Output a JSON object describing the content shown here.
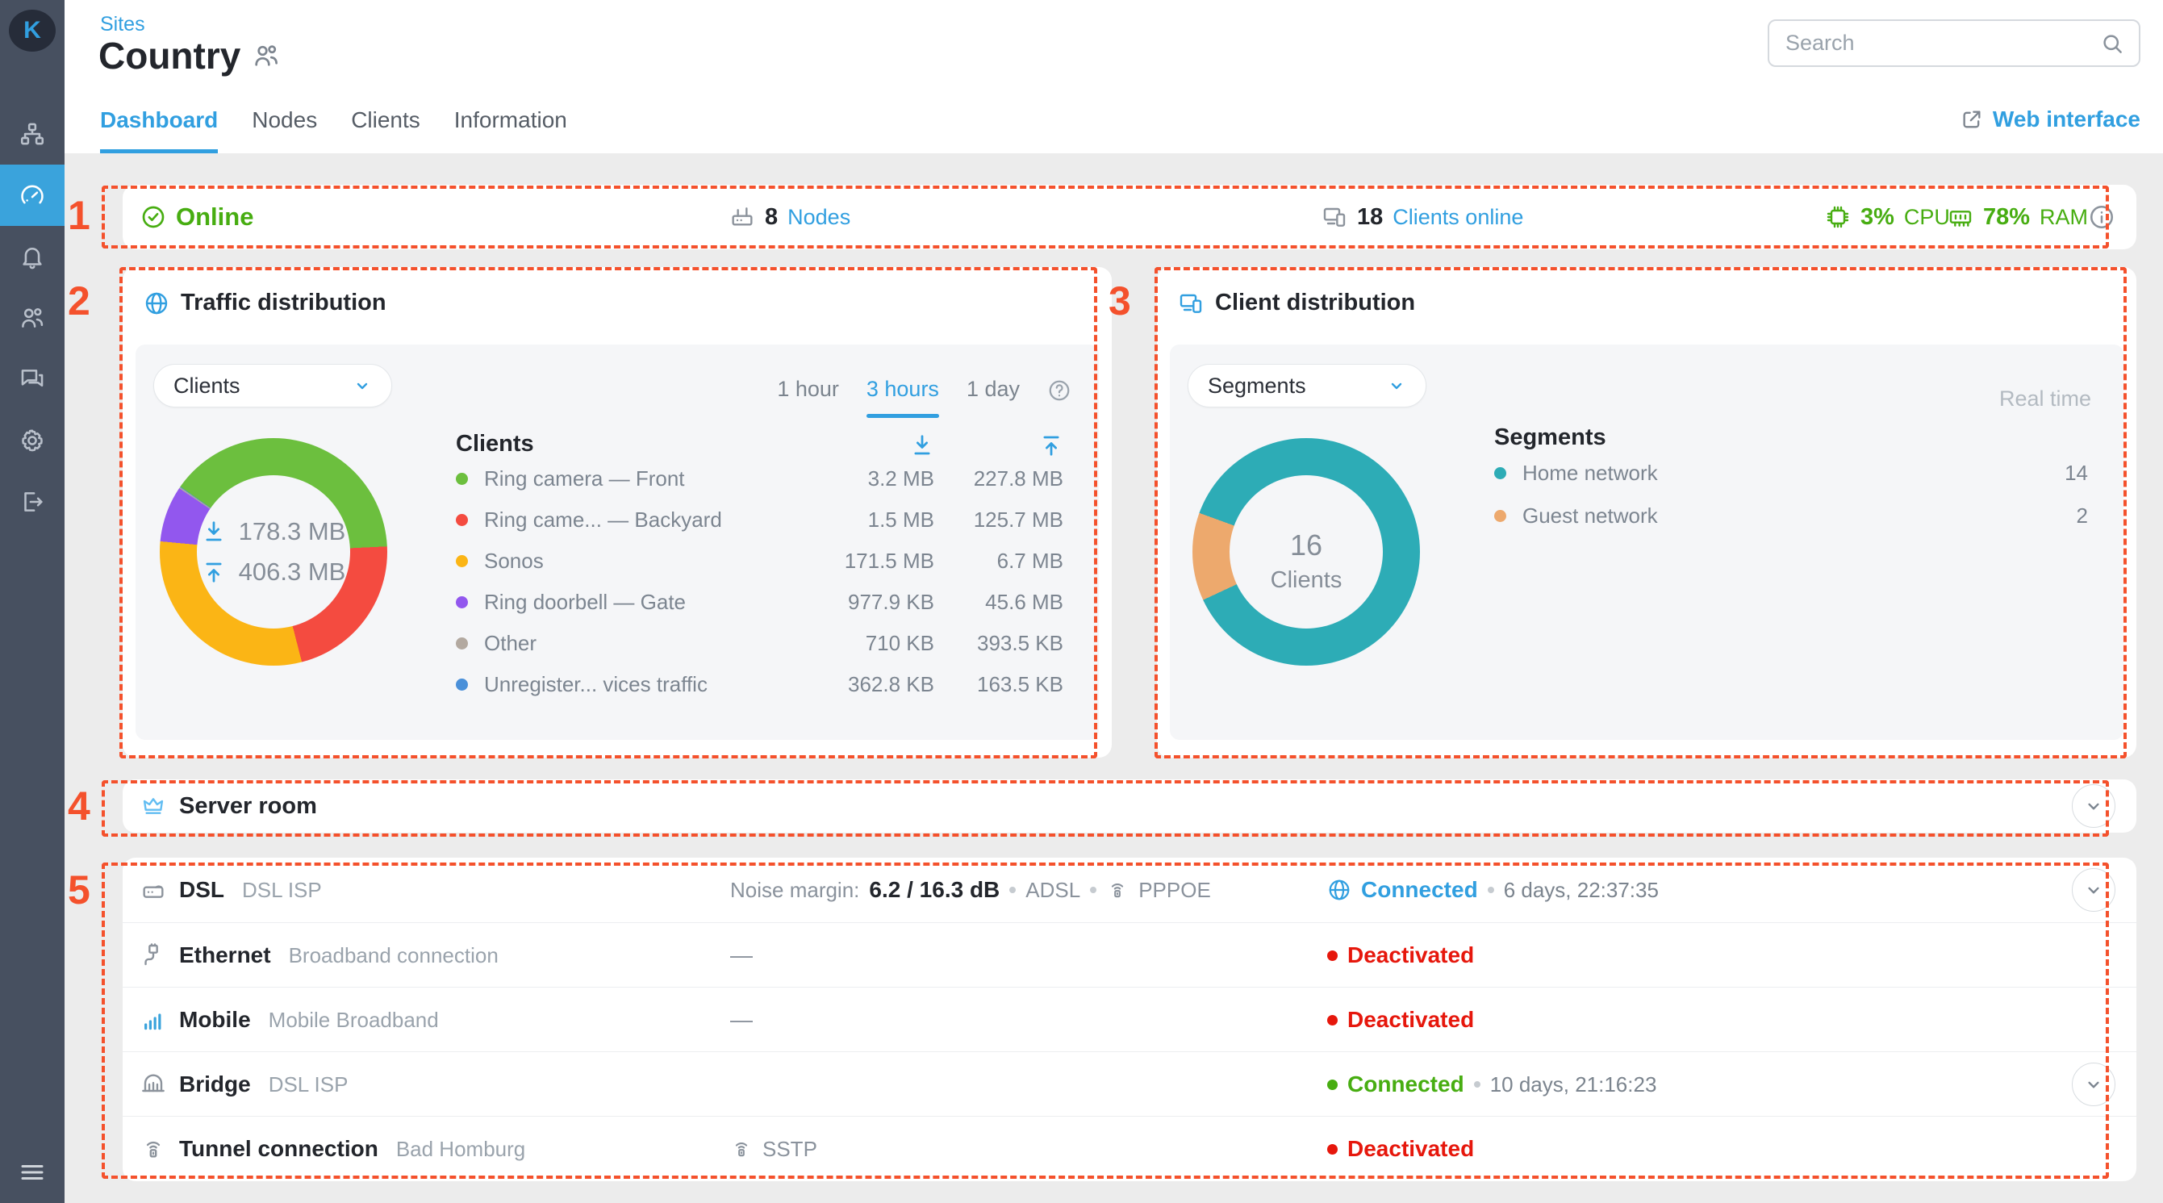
{
  "annotations": {
    "color": "#f4512c",
    "items": [
      {
        "label": "1",
        "target": "status-bar"
      },
      {
        "label": "2",
        "target": "traffic-distribution-card"
      },
      {
        "label": "3",
        "target": "client-distribution-card"
      },
      {
        "label": "4",
        "target": "server-room-row"
      },
      {
        "label": "5",
        "target": "connections-list"
      }
    ]
  },
  "sidebar": {
    "logo_letter": "K",
    "items": [
      {
        "icon": "sites-icon",
        "name": "sites",
        "active": false
      },
      {
        "icon": "dashboard-icon",
        "name": "dashboard",
        "active": true
      },
      {
        "icon": "notifications-icon",
        "name": "notifications",
        "active": false
      },
      {
        "icon": "clients-icon",
        "name": "clients",
        "active": false
      },
      {
        "icon": "support-chat-icon",
        "name": "support",
        "active": false
      },
      {
        "icon": "settings-icon",
        "name": "settings",
        "active": false
      },
      {
        "icon": "logout-icon",
        "name": "logout",
        "active": false
      }
    ]
  },
  "header": {
    "breadcrumb": "Sites",
    "title": "Country",
    "search_placeholder": "Search",
    "web_interface_label": "Web interface",
    "tabs": [
      {
        "label": "Dashboard",
        "active": true
      },
      {
        "label": "Nodes",
        "active": false
      },
      {
        "label": "Clients",
        "active": false
      },
      {
        "label": "Information",
        "active": false
      }
    ]
  },
  "status_bar": {
    "online_label": "Online",
    "nodes_count": "8",
    "nodes_label": "Nodes",
    "clients_count": "18",
    "clients_label": "Clients online",
    "cpu_value": "3%",
    "cpu_label": "CPU",
    "ram_value": "78%",
    "ram_label": "RAM",
    "green": "#47ad11"
  },
  "traffic_card": {
    "title": "Traffic distribution",
    "filter_value": "Clients",
    "time_ranges": [
      {
        "label": "1 hour",
        "active": false
      },
      {
        "label": "3 hours",
        "active": true
      },
      {
        "label": "1 day",
        "active": false
      }
    ],
    "center_download": "178.3 MB",
    "center_upload": "406.3 MB",
    "legend_title": "Clients",
    "donut_start_angle": -55,
    "clients": [
      {
        "name": "Ring camera — Front",
        "color": "#6cbf3e",
        "download": "3.2 MB",
        "upload": "227.8 MB",
        "share": 231.0
      },
      {
        "name": "Ring came... — Backyard",
        "color": "#f44b40",
        "download": "1.5 MB",
        "upload": "125.7 MB",
        "share": 127.2
      },
      {
        "name": "Sonos",
        "color": "#fbb515",
        "download": "171.5 MB",
        "upload": "6.7 MB",
        "share": 178.2
      },
      {
        "name": "Ring doorbell — Gate",
        "color": "#9257ee",
        "download": "977.9 KB",
        "upload": "45.6 MB",
        "share": 46.6
      },
      {
        "name": "Other",
        "color": "#b3a9a0",
        "download": "710 KB",
        "upload": "393.5 KB",
        "share": 1.1
      },
      {
        "name": "Unregister...  vices traffic",
        "color": "#4a90d9",
        "download": "362.8 KB",
        "upload": "163.5 KB",
        "share": 0.5
      }
    ]
  },
  "client_card": {
    "title": "Client distribution",
    "filter_value": "Segments",
    "realtime_label": "Real time",
    "center_value": "16",
    "center_label": "Clients",
    "legend_title": "Segments",
    "donut_start_angle": -70,
    "segments": [
      {
        "name": "Home network",
        "color": "#2dacb6",
        "count": "14",
        "share": 14
      },
      {
        "name": "Guest network",
        "color": "#eda96d",
        "count": "2",
        "share": 2
      }
    ]
  },
  "server_room": {
    "title": "Server room"
  },
  "connections": {
    "rows": [
      {
        "icon": "dsl-modem-icon",
        "name": "DSL",
        "desc": "DSL ISP",
        "middle": {
          "type": "noise",
          "label": "Noise margin:",
          "value": "6.2 / 16.3 dB",
          "tag": "ADSL",
          "proto": "PPPOE"
        },
        "status": {
          "kind": "globe",
          "text": "Connected",
          "color": "blue",
          "uptime": "6 days, 22:37:35"
        },
        "chevron": true
      },
      {
        "icon": "ethernet-icon",
        "name": "Ethernet",
        "desc": "Broadband connection",
        "middle": {
          "type": "dash"
        },
        "status": {
          "kind": "dot",
          "text": "Deactivated",
          "color": "red"
        },
        "chevron": false
      },
      {
        "icon": "signal-icon",
        "name": "Mobile",
        "desc": "Mobile Broadband",
        "middle": {
          "type": "dash"
        },
        "status": {
          "kind": "dot",
          "text": "Deactivated",
          "color": "red"
        },
        "chevron": false
      },
      {
        "icon": "bridge-icon",
        "name": "Bridge",
        "desc": "DSL ISP",
        "middle": {
          "type": "none"
        },
        "status": {
          "kind": "dot",
          "text": "Connected",
          "color": "green",
          "uptime": "10 days, 21:16:23"
        },
        "chevron": true
      },
      {
        "icon": "tunnel-icon",
        "name": "Tunnel connection",
        "desc": "Bad Homburg",
        "middle": {
          "type": "proto",
          "proto": "SSTP"
        },
        "status": {
          "kind": "dot",
          "text": "Deactivated",
          "color": "red"
        },
        "chevron": false
      }
    ]
  }
}
